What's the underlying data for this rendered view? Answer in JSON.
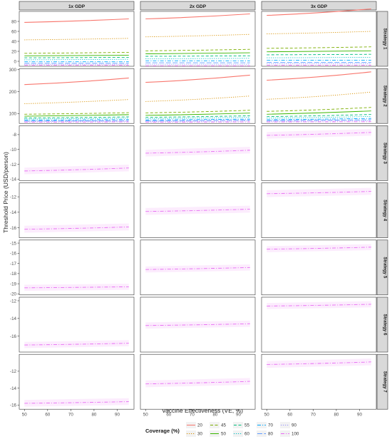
{
  "figure": {
    "y_axis_label": "Threshold Price (USD/person)",
    "x_axis_label": "Vaccine Effectiveness (VE, %)",
    "column_strips": [
      "1x GDP",
      "2x GDP",
      "3x GDP"
    ],
    "row_strips": [
      "Strategy 1",
      "Strategy 2",
      "Strategy 3",
      "Strategy 4",
      "Strategy 5",
      "Strategy 6",
      "Strategy 7"
    ],
    "x_ticks": [
      "50",
      "60",
      "70",
      "80",
      "90"
    ],
    "legend": {
      "title": "Coverage (%)",
      "entries": [
        {
          "label": "20",
          "color": "#F8766D",
          "dash": "solid"
        },
        {
          "label": "30",
          "color": "#D89000",
          "dash": "dotted"
        },
        {
          "label": "45",
          "color": "#7CAE00",
          "dash": "dashed"
        },
        {
          "label": "50",
          "color": "#39B600",
          "dash": "solid"
        },
        {
          "label": "55",
          "color": "#00BF7D",
          "dash": "dashed"
        },
        {
          "label": "60",
          "color": "#00BFC4",
          "dash": "dotted"
        },
        {
          "label": "70",
          "color": "#00A9FF",
          "dash": "dashdot"
        },
        {
          "label": "80",
          "color": "#619CFF",
          "dash": "longdash"
        },
        {
          "label": "90",
          "color": "#9590FF",
          "dash": "dotted"
        },
        {
          "label": "100",
          "color": "#E76BF3",
          "dash": "dashdot"
        }
      ]
    }
  },
  "chart_data": {
    "type": "line",
    "x_range": [
      50,
      95
    ],
    "x_ticks": [
      50,
      60,
      70,
      80,
      90
    ],
    "panels": [
      {
        "strategy": "Strategy 1",
        "gdp": "1x GDP",
        "ylim": [
          -10,
          100
        ],
        "yticks": [
          0,
          20,
          40,
          60,
          80
        ],
        "series": [
          {
            "coverage": "20",
            "start": 78,
            "end": 85
          },
          {
            "coverage": "30",
            "start": 43,
            "end": 46
          },
          {
            "coverage": "45",
            "start": 16,
            "end": 18
          },
          {
            "coverage": "50",
            "start": 11,
            "end": 12
          },
          {
            "coverage": "55",
            "start": 7,
            "end": 8
          },
          {
            "coverage": "60",
            "start": 3,
            "end": 4
          },
          {
            "coverage": "70",
            "start": -1,
            "end": -1
          },
          {
            "coverage": "80",
            "start": -4,
            "end": -4
          },
          {
            "coverage": "90",
            "start": -6,
            "end": -6
          },
          {
            "coverage": "100",
            "start": -8,
            "end": -8
          }
        ]
      },
      {
        "strategy": "Strategy 1",
        "gdp": "2x GDP",
        "ylim": [
          -10,
          100
        ],
        "yticks": [
          0,
          20,
          40,
          60,
          80
        ],
        "series": [
          {
            "coverage": "20",
            "start": 85,
            "end": 95
          },
          {
            "coverage": "30",
            "start": 49,
            "end": 54
          },
          {
            "coverage": "45",
            "start": 21,
            "end": 24
          },
          {
            "coverage": "50",
            "start": 15,
            "end": 17
          },
          {
            "coverage": "55",
            "start": 10,
            "end": 11
          },
          {
            "coverage": "60",
            "start": 5,
            "end": 6
          },
          {
            "coverage": "70",
            "start": 1,
            "end": 1
          },
          {
            "coverage": "80",
            "start": -3,
            "end": -3
          },
          {
            "coverage": "90",
            "start": -6,
            "end": -6
          },
          {
            "coverage": "100",
            "start": -9,
            "end": -9
          }
        ]
      },
      {
        "strategy": "Strategy 1",
        "gdp": "3x GDP",
        "ylim": [
          -10,
          100
        ],
        "yticks": [
          0,
          20,
          40,
          60,
          80
        ],
        "series": [
          {
            "coverage": "20",
            "start": 92,
            "end": 105
          },
          {
            "coverage": "30",
            "start": 55,
            "end": 60
          },
          {
            "coverage": "45",
            "start": 26,
            "end": 29
          },
          {
            "coverage": "50",
            "start": 19,
            "end": 21
          },
          {
            "coverage": "55",
            "start": 13,
            "end": 14
          },
          {
            "coverage": "60",
            "start": 7,
            "end": 8
          },
          {
            "coverage": "70",
            "start": 2,
            "end": 2
          },
          {
            "coverage": "80",
            "start": -2,
            "end": -2
          },
          {
            "coverage": "90",
            "start": -5,
            "end": -5
          },
          {
            "coverage": "100",
            "start": -8,
            "end": -8
          }
        ]
      },
      {
        "strategy": "Strategy 2",
        "gdp": "1x GDP",
        "ylim": [
          55,
          305
        ],
        "yticks": [
          100,
          200,
          300
        ],
        "series": [
          {
            "coverage": "20",
            "start": 232,
            "end": 262
          },
          {
            "coverage": "30",
            "start": 145,
            "end": 164
          },
          {
            "coverage": "45",
            "start": 97,
            "end": 104
          },
          {
            "coverage": "50",
            "start": 88,
            "end": 95
          },
          {
            "coverage": "55",
            "start": 80,
            "end": 85
          },
          {
            "coverage": "60",
            "start": 75,
            "end": 79
          },
          {
            "coverage": "70",
            "start": 70,
            "end": 73
          },
          {
            "coverage": "80",
            "start": 66,
            "end": 68
          },
          {
            "coverage": "90",
            "start": 64,
            "end": 65
          },
          {
            "coverage": "100",
            "start": 61,
            "end": 62
          }
        ]
      },
      {
        "strategy": "Strategy 2",
        "gdp": "2x GDP",
        "ylim": [
          55,
          305
        ],
        "yticks": [
          100,
          200,
          300
        ],
        "series": [
          {
            "coverage": "20",
            "start": 242,
            "end": 275
          },
          {
            "coverage": "30",
            "start": 155,
            "end": 180
          },
          {
            "coverage": "45",
            "start": 103,
            "end": 115
          },
          {
            "coverage": "50",
            "start": 92,
            "end": 102
          },
          {
            "coverage": "55",
            "start": 83,
            "end": 90
          },
          {
            "coverage": "60",
            "start": 77,
            "end": 83
          },
          {
            "coverage": "70",
            "start": 71,
            "end": 75
          },
          {
            "coverage": "80",
            "start": 67,
            "end": 70
          },
          {
            "coverage": "90",
            "start": 64,
            "end": 66
          },
          {
            "coverage": "100",
            "start": 61,
            "end": 62
          }
        ]
      },
      {
        "strategy": "Strategy 2",
        "gdp": "3x GDP",
        "ylim": [
          55,
          305
        ],
        "yticks": [
          100,
          200,
          300
        ],
        "series": [
          {
            "coverage": "20",
            "start": 252,
            "end": 290
          },
          {
            "coverage": "30",
            "start": 165,
            "end": 198
          },
          {
            "coverage": "45",
            "start": 110,
            "end": 128
          },
          {
            "coverage": "50",
            "start": 97,
            "end": 112
          },
          {
            "coverage": "55",
            "start": 86,
            "end": 96
          },
          {
            "coverage": "60",
            "start": 79,
            "end": 87
          },
          {
            "coverage": "70",
            "start": 72,
            "end": 78
          },
          {
            "coverage": "80",
            "start": 68,
            "end": 72
          },
          {
            "coverage": "90",
            "start": 65,
            "end": 67
          },
          {
            "coverage": "100",
            "start": 62,
            "end": 63
          }
        ]
      },
      {
        "strategy": "Strategy 3",
        "gdp": "1x GDP",
        "ylim": [
          -14.2,
          -6.8
        ],
        "yticks": [
          -14,
          -12,
          -10,
          -8
        ],
        "series": [
          {
            "coverage": "100",
            "start": -12.9,
            "end": -12.5,
            "band": 0.45
          }
        ]
      },
      {
        "strategy": "Strategy 3",
        "gdp": "2x GDP",
        "ylim": [
          -14.2,
          -6.8
        ],
        "yticks": [
          -14,
          -12,
          -10,
          -8
        ],
        "series": [
          {
            "coverage": "100",
            "start": -10.5,
            "end": -10.1,
            "band": 0.45
          }
        ]
      },
      {
        "strategy": "Strategy 3",
        "gdp": "3x GDP",
        "ylim": [
          -14.2,
          -6.8
        ],
        "yticks": [
          -14,
          -12,
          -10,
          -8
        ],
        "series": [
          {
            "coverage": "100",
            "start": -8.1,
            "end": -7.7,
            "band": 0.45
          }
        ]
      },
      {
        "strategy": "Strategy 4",
        "gdp": "1x GDP",
        "ylim": [
          -17.3,
          -10.2
        ],
        "yticks": [
          -16,
          -14,
          -12
        ],
        "series": [
          {
            "coverage": "100",
            "start": -16.2,
            "end": -15.9,
            "band": 0.45
          }
        ]
      },
      {
        "strategy": "Strategy 4",
        "gdp": "2x GDP",
        "ylim": [
          -17.3,
          -10.2
        ],
        "yticks": [
          -16,
          -14,
          -12
        ],
        "series": [
          {
            "coverage": "100",
            "start": -13.9,
            "end": -13.6,
            "band": 0.45
          }
        ]
      },
      {
        "strategy": "Strategy 4",
        "gdp": "3x GDP",
        "ylim": [
          -17.3,
          -10.2
        ],
        "yticks": [
          -16,
          -14,
          -12
        ],
        "series": [
          {
            "coverage": "100",
            "start": -11.6,
            "end": -11.3,
            "band": 0.45
          }
        ]
      },
      {
        "strategy": "Strategy 5",
        "gdp": "1x GDP",
        "ylim": [
          -20.1,
          -14.7
        ],
        "yticks": [
          -20,
          -19,
          -18,
          -17,
          -16,
          -15
        ],
        "series": [
          {
            "coverage": "100",
            "start": -19.4,
            "end": -19.3,
            "band": 0.3
          }
        ]
      },
      {
        "strategy": "Strategy 5",
        "gdp": "2x GDP",
        "ylim": [
          -20.1,
          -14.7
        ],
        "yticks": [
          -20,
          -19,
          -18,
          -17,
          -16,
          -15
        ],
        "series": [
          {
            "coverage": "100",
            "start": -17.6,
            "end": -17.4,
            "band": 0.3
          }
        ]
      },
      {
        "strategy": "Strategy 5",
        "gdp": "3x GDP",
        "ylim": [
          -20.1,
          -14.7
        ],
        "yticks": [
          -20,
          -19,
          -18,
          -17,
          -16,
          -15
        ],
        "series": [
          {
            "coverage": "100",
            "start": -15.6,
            "end": -15.4,
            "band": 0.3
          }
        ]
      },
      {
        "strategy": "Strategy 6",
        "gdp": "1x GDP",
        "ylim": [
          -17.8,
          -11.6
        ],
        "yticks": [
          -16,
          -14,
          -12
        ],
        "series": [
          {
            "coverage": "100",
            "start": -17.0,
            "end": -16.8,
            "band": 0.35
          }
        ]
      },
      {
        "strategy": "Strategy 6",
        "gdp": "2x GDP",
        "ylim": [
          -17.8,
          -11.6
        ],
        "yticks": [
          -16,
          -14,
          -12
        ],
        "series": [
          {
            "coverage": "100",
            "start": -14.8,
            "end": -14.6,
            "band": 0.35
          }
        ]
      },
      {
        "strategy": "Strategy 6",
        "gdp": "3x GDP",
        "ylim": [
          -17.8,
          -11.6
        ],
        "yticks": [
          -16,
          -14,
          -12
        ],
        "series": [
          {
            "coverage": "100",
            "start": -12.6,
            "end": -12.4,
            "band": 0.35
          }
        ]
      },
      {
        "strategy": "Strategy 7",
        "gdp": "1x GDP",
        "ylim": [
          -16.5,
          -10.0
        ],
        "yticks": [
          -16,
          -14,
          -12
        ],
        "series": [
          {
            "coverage": "100",
            "start": -15.8,
            "end": -15.6,
            "band": 0.4
          }
        ]
      },
      {
        "strategy": "Strategy 7",
        "gdp": "2x GDP",
        "ylim": [
          -16.5,
          -10.0
        ],
        "yticks": [
          -16,
          -14,
          -12
        ],
        "series": [
          {
            "coverage": "100",
            "start": -13.5,
            "end": -13.2,
            "band": 0.4
          }
        ]
      },
      {
        "strategy": "Strategy 7",
        "gdp": "3x GDP",
        "ylim": [
          -16.5,
          -10.0
        ],
        "yticks": [
          -16,
          -14,
          -12
        ],
        "series": [
          {
            "coverage": "100",
            "start": -11.2,
            "end": -10.9,
            "band": 0.4
          }
        ]
      }
    ]
  }
}
